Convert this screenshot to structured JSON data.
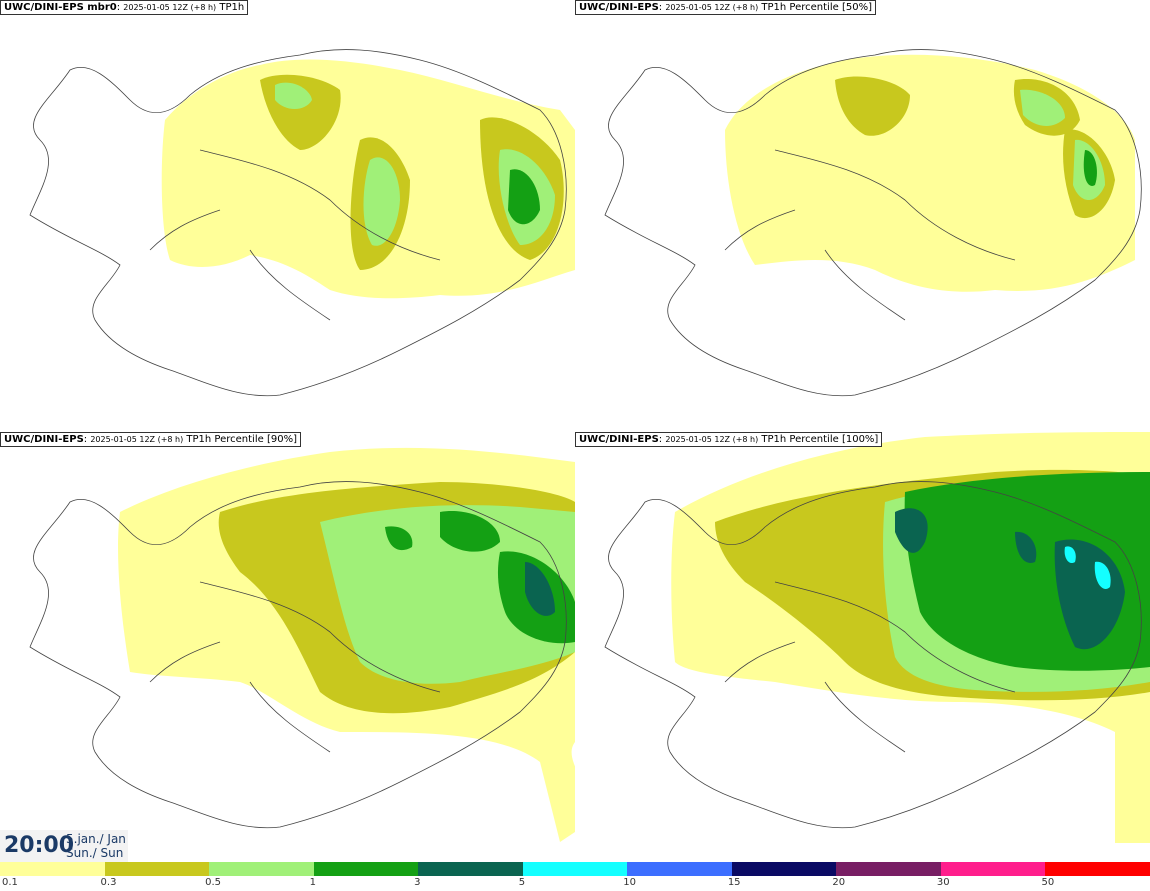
{
  "panels": [
    {
      "model": "UWC/DINI-EPS mbr0",
      "meta": "2025-01-05 12Z (+8 h)",
      "field": "TP1h"
    },
    {
      "model": "UWC/DINI-EPS",
      "meta": "2025-01-05 12Z (+8 h)",
      "field": "TP1h Percentile [50%]"
    },
    {
      "model": "UWC/DINI-EPS",
      "meta": "2025-01-05 12Z (+8 h)",
      "field": "TP1h Percentile [90%]"
    },
    {
      "model": "UWC/DINI-EPS",
      "meta": "2025-01-05 12Z (+8 h)",
      "field": "TP1h Percentile [100%]"
    }
  ],
  "clock": {
    "time": "20:00",
    "date_line1": "5.jan./ Jan",
    "date_line2": "Sun./ Sun"
  },
  "legend": {
    "colors": [
      "#ffff99",
      "#c8c81e",
      "#a0f078",
      "#14a014",
      "#0a6450",
      "#14ffff",
      "#3c6eff",
      "#0a0a64",
      "#781e64",
      "#ff1e8c",
      "#ff0000"
    ],
    "ticks": [
      "0.1",
      "0.3",
      "0.5",
      "1",
      "3",
      "5",
      "10",
      "15",
      "20",
      "30",
      "50"
    ]
  }
}
